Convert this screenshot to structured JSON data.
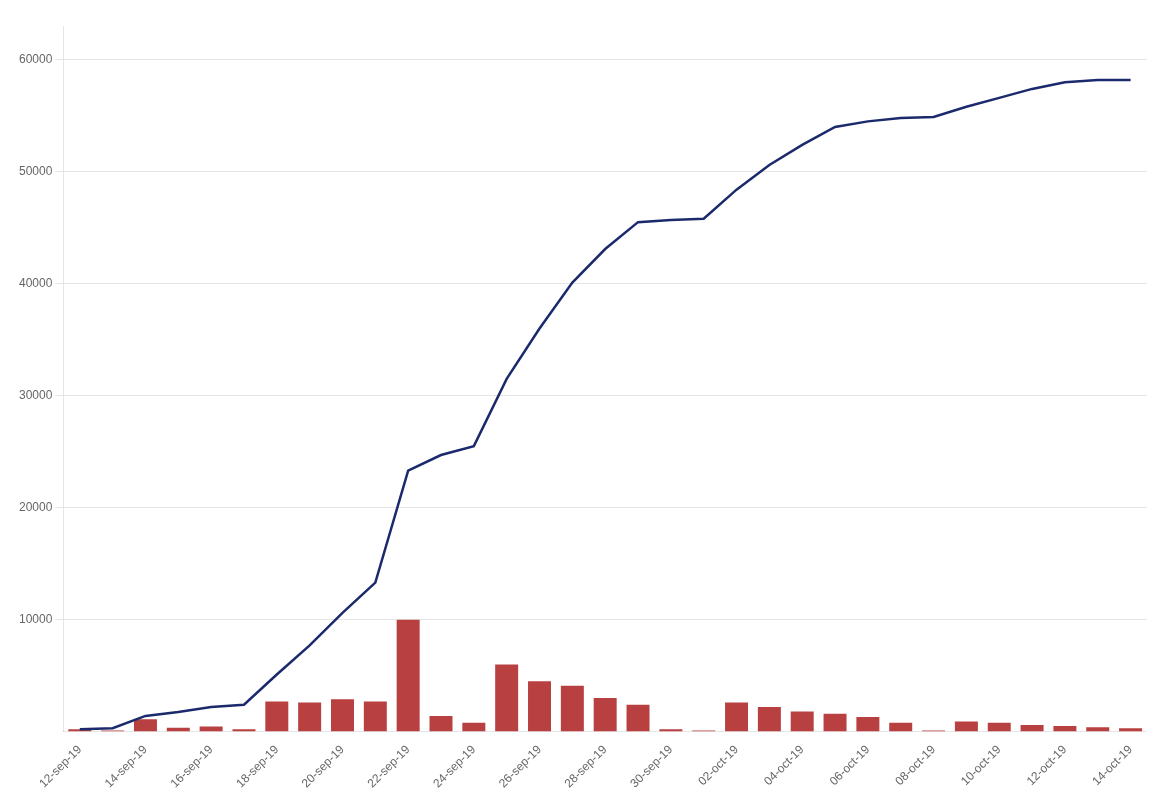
{
  "chart_data": {
    "type": "bar",
    "categories": [
      "12-sep-19",
      null,
      "14-sep-19",
      null,
      "16-sep-19",
      null,
      "18-sep-19",
      null,
      "20-sep-19",
      null,
      "22-sep-19",
      null,
      "24-sep-19",
      null,
      "26-sep-19",
      null,
      "28-sep-19",
      null,
      "30-sep-19",
      null,
      "02-oct-19",
      null,
      "04-oct-19",
      null,
      "06-oct-19",
      null,
      "08-oct-19",
      null,
      "10-oct-19",
      null,
      "12-oct-19",
      null,
      "14-oct-19"
    ],
    "series": [
      {
        "type": "bar",
        "color": "#b94040",
        "values": [
          200,
          100,
          1100,
          350,
          450,
          200,
          2700,
          2600,
          2900,
          2700,
          10000,
          1400,
          800,
          6000,
          4500,
          4100,
          3000,
          2400,
          200,
          100,
          2600,
          2200,
          1800,
          1600,
          1300,
          800,
          100,
          900,
          800,
          600,
          500,
          400,
          300
        ]
      },
      {
        "type": "line",
        "color": "#1a2a6c",
        "values": [
          200,
          300,
          1400,
          1750,
          2200,
          2400,
          5100,
          7700,
          10600,
          13300,
          23300,
          24700,
          25500,
          31500,
          36000,
          40100,
          43100,
          45500,
          45700,
          45800,
          48400,
          50600,
          52400,
          54000,
          54500,
          54800,
          54900,
          55800,
          56600,
          57400,
          58000,
          58200,
          58200
        ]
      }
    ],
    "ylim": [
      0,
      63000
    ],
    "yticks": [
      10000,
      20000,
      30000,
      40000,
      50000,
      60000
    ],
    "grid": "y"
  }
}
